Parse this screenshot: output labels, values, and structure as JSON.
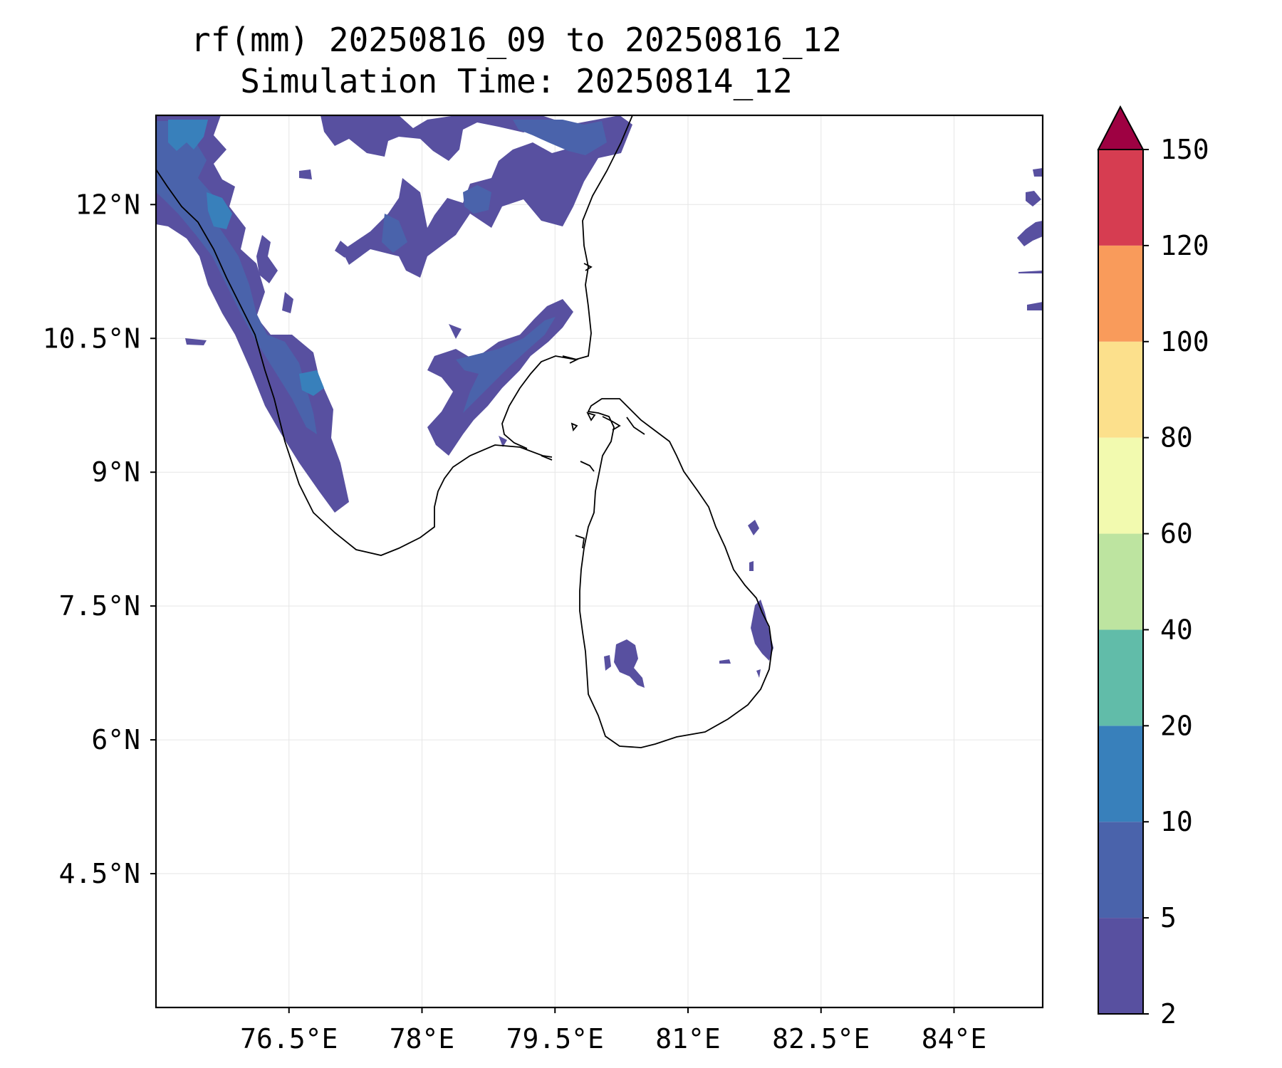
{
  "title": "rf(mm) 20250816_09 to 20250816_12",
  "subtitle": "Simulation Time: 20250814_12",
  "map": {
    "lon_range": [
      75.0,
      85.0
    ],
    "lat_range": [
      3.0,
      13.0
    ],
    "x_ticks": [
      {
        "value": 76.5,
        "label": "76.5°E"
      },
      {
        "value": 78.0,
        "label": "78°E"
      },
      {
        "value": 79.5,
        "label": "79.5°E"
      },
      {
        "value": 81.0,
        "label": "81°E"
      },
      {
        "value": 82.5,
        "label": "82.5°E"
      },
      {
        "value": 84.0,
        "label": "84°E"
      }
    ],
    "y_ticks": [
      {
        "value": 12.0,
        "label": "12°N"
      },
      {
        "value": 10.5,
        "label": "10.5°N"
      },
      {
        "value": 9.0,
        "label": "9°N"
      },
      {
        "value": 7.5,
        "label": "7.5°N"
      },
      {
        "value": 6.0,
        "label": "6°N"
      },
      {
        "value": 4.5,
        "label": "4.5°N"
      }
    ],
    "grid": true,
    "gridline_color": "#e6e6e6",
    "coastline_color": "#000000"
  },
  "colorbar": {
    "levels": [
      2,
      5,
      10,
      20,
      40,
      60,
      80,
      100,
      120,
      150
    ],
    "tick_labels": [
      "2",
      "5",
      "10",
      "20",
      "40",
      "60",
      "80",
      "100",
      "120",
      "150"
    ],
    "colors": [
      "#5850a0",
      "#4a63ab",
      "#3880bb",
      "#61bca9",
      "#bde4a0",
      "#f2faaf",
      "#fce08c",
      "#f99b5b",
      "#d63d51"
    ],
    "extend_color": "#9e0142",
    "extend": "max"
  }
}
